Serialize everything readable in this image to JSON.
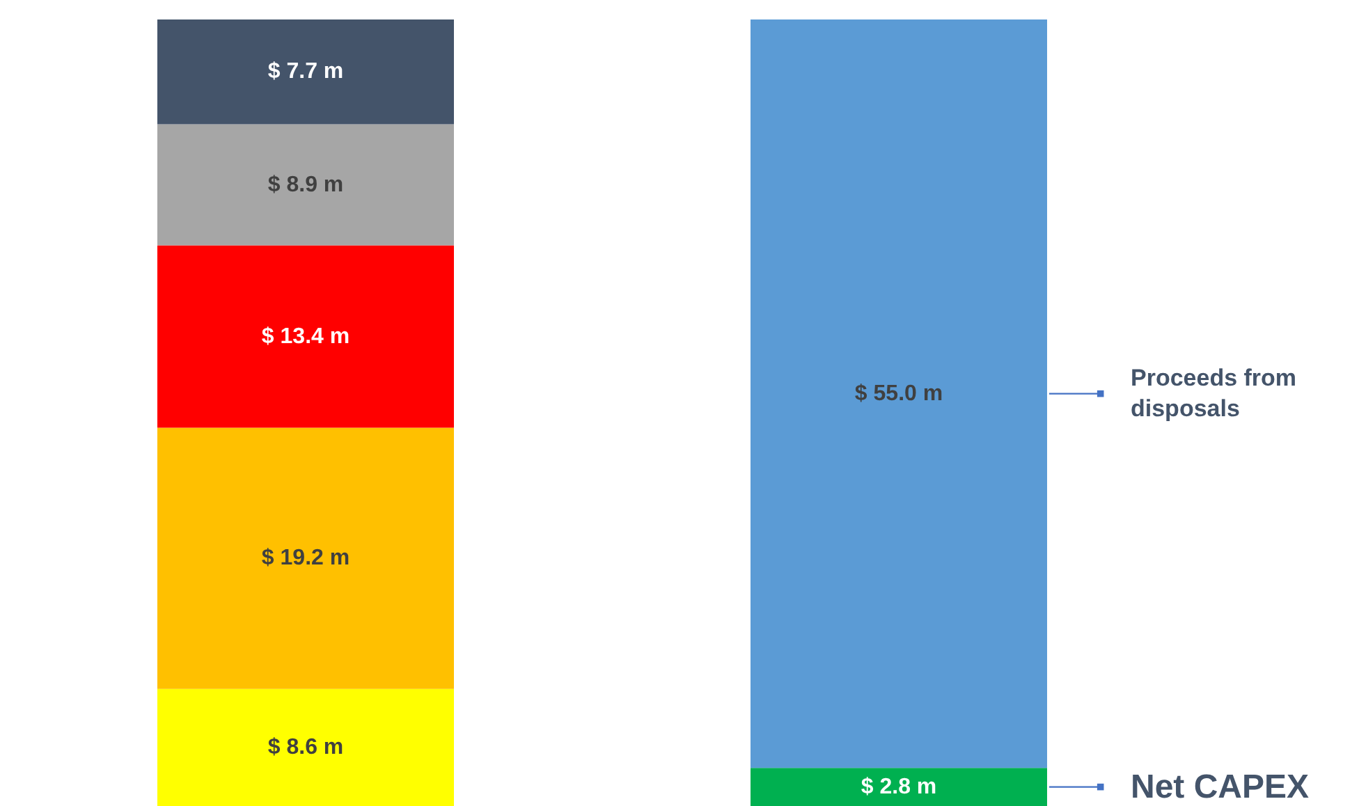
{
  "chart_data": {
    "type": "bar",
    "stacked": true,
    "categories": [
      null,
      null
    ],
    "tick_labels": false,
    "legend": false,
    "series": [
      {
        "values": [
          8.6,
          2.8
        ],
        "colors": [
          "#ffff00",
          "#00b050"
        ],
        "value_labels": [
          "$ 8.6 m",
          "$ 2.8 m"
        ]
      },
      {
        "values": [
          19.2,
          55.0
        ],
        "colors": [
          "#ffc000",
          "#5b9bd5"
        ],
        "value_labels": [
          "$ 19.2 m",
          "$ 55.0 m"
        ]
      },
      {
        "values": [
          13.4,
          null
        ],
        "colors": [
          "#ff0000",
          null
        ],
        "value_labels": [
          "$ 13.4 m",
          null
        ]
      },
      {
        "values": [
          8.9,
          null
        ],
        "colors": [
          "#a6a6a6",
          null
        ],
        "value_labels": [
          "$ 8.9 m",
          null
        ]
      },
      {
        "values": [
          7.7,
          null
        ],
        "colors": [
          "#44546a",
          null
        ],
        "value_labels": [
          "$ 7.7 m",
          null
        ]
      }
    ],
    "annotations": [
      "Proceeds from\ndisposals",
      "Net CAPEX"
    ]
  }
}
